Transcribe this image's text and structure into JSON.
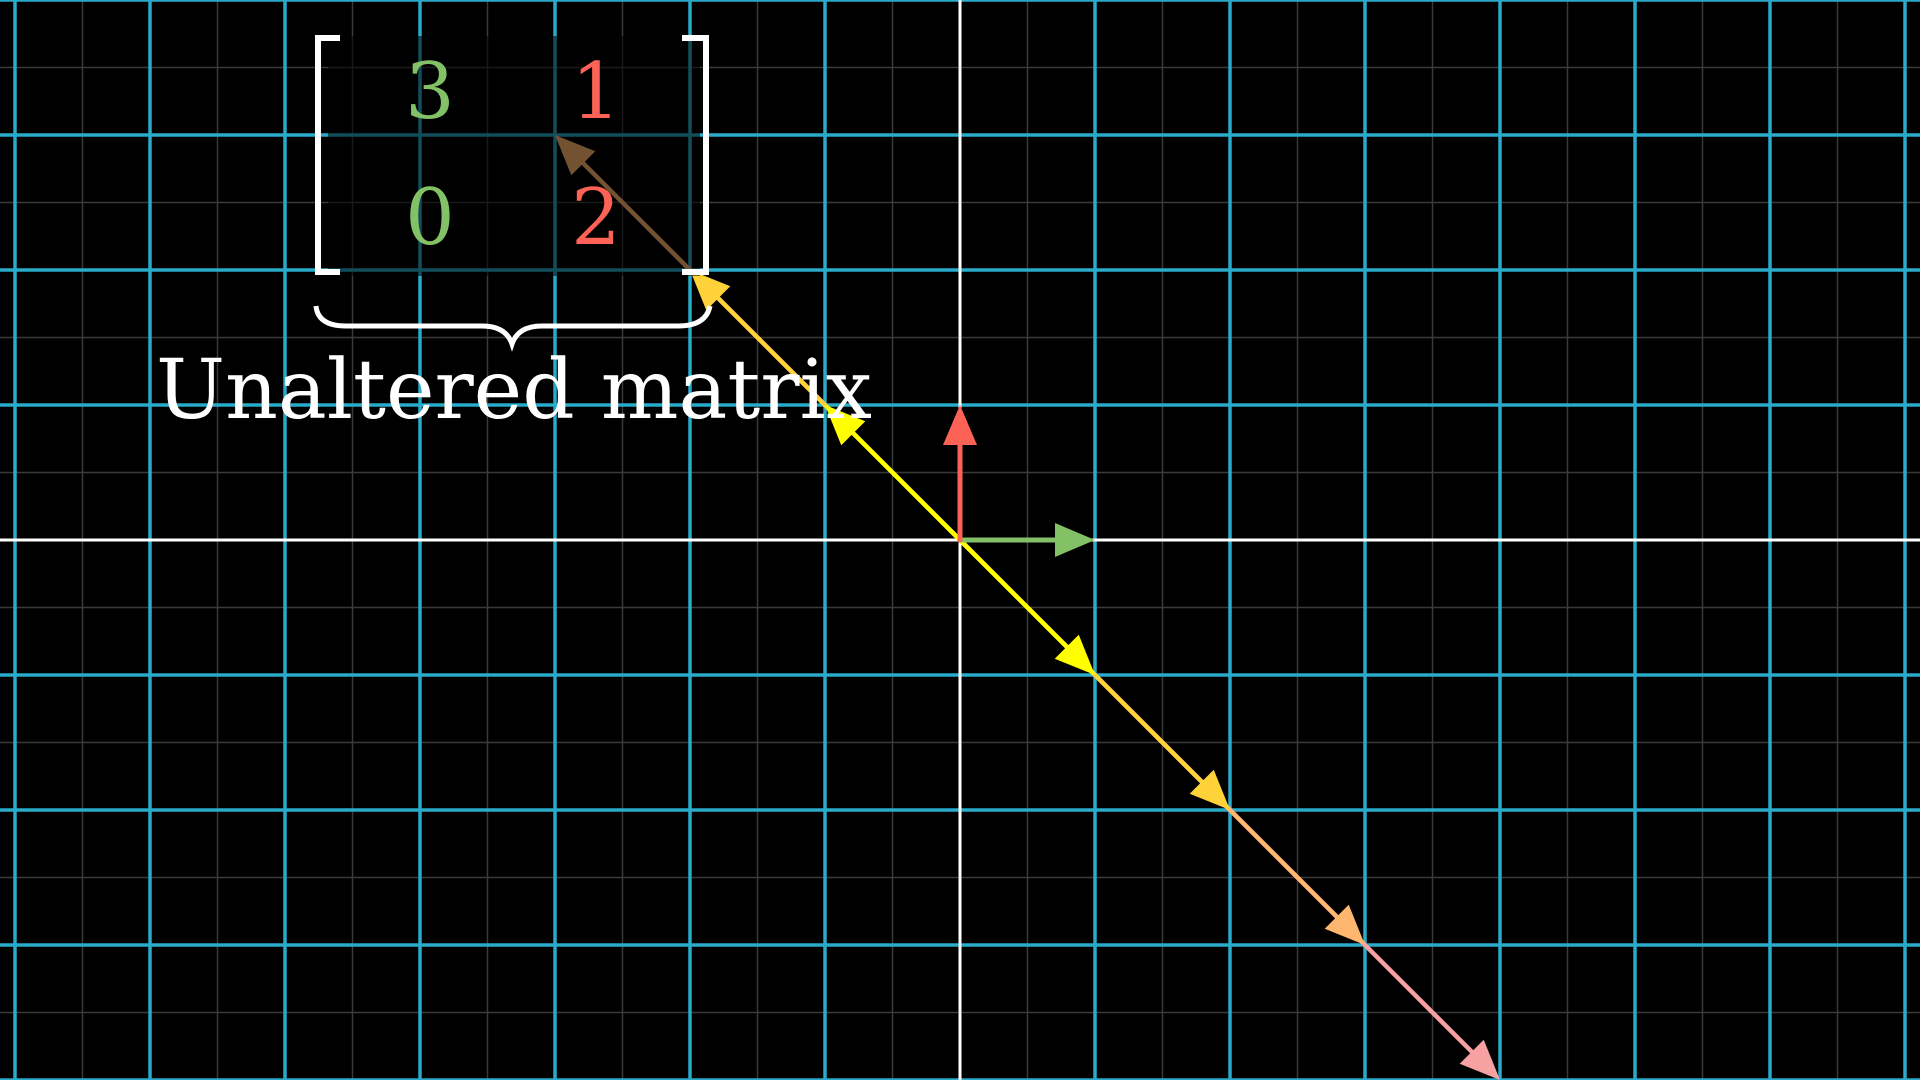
{
  "matrix": {
    "entries": [
      [
        "3",
        "1"
      ],
      [
        "0",
        "2"
      ]
    ],
    "column_colors": [
      "#83c167",
      "#fc6255"
    ],
    "label": "Unaltered matrix"
  },
  "colors": {
    "background": "#000000",
    "grid_major": "#29abca",
    "grid_minor": "#3a3a3a",
    "axes": "#ffffff",
    "basis_i": "#83c167",
    "basis_j": "#fc6255",
    "eigen_vectors": [
      "#ffff00",
      "#ffd23a",
      "#ffb66e",
      "#f7a1a3"
    ],
    "label_text": "#ffffff"
  },
  "vectors": {
    "i_hat": [
      1,
      0
    ],
    "j_hat": [
      0,
      1
    ],
    "span_direction": [
      1,
      -1
    ],
    "scales": [
      -3,
      -2,
      -1,
      1,
      2,
      3,
      4
    ]
  }
}
